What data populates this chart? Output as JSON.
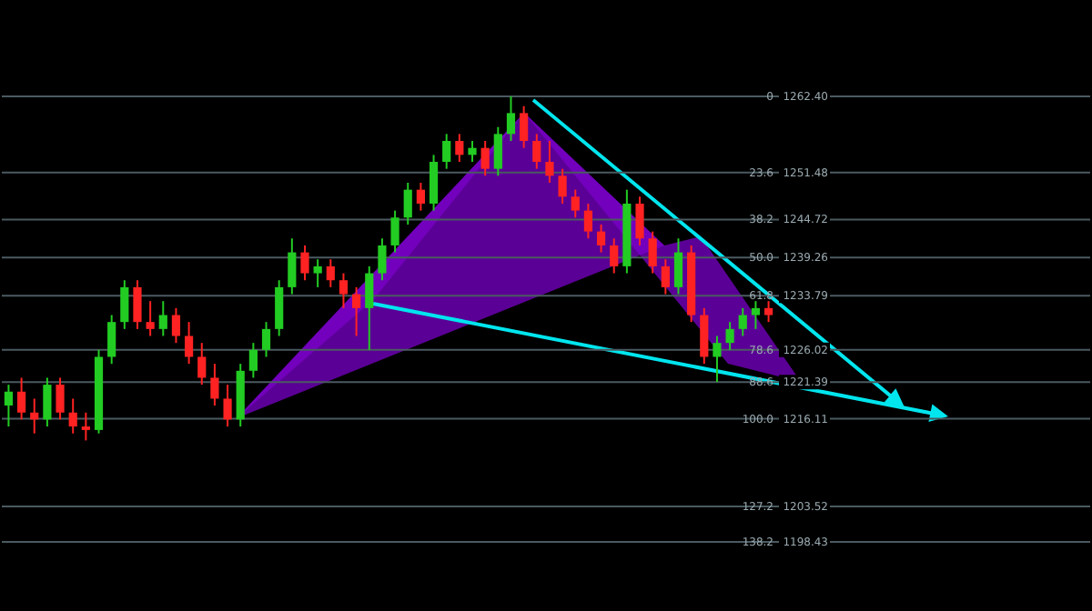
{
  "chart_data": {
    "type": "candlestick",
    "categories": [
      null,
      null,
      null,
      null,
      null,
      null,
      null,
      null,
      null,
      null,
      null,
      null,
      null,
      null,
      null,
      null,
      null,
      null,
      null,
      null,
      null,
      null,
      null,
      null,
      null,
      null,
      null,
      null,
      null,
      null,
      null,
      null,
      null,
      null,
      null,
      null,
      null,
      null,
      null,
      null,
      null,
      null,
      null,
      null,
      null,
      null,
      null,
      null,
      null,
      null,
      null,
      null,
      null,
      null,
      null,
      null,
      null,
      null,
      null,
      null
    ],
    "ohlc": [
      [
        1218,
        1221,
        1215,
        1220
      ],
      [
        1220,
        1222,
        1216,
        1217
      ],
      [
        1217,
        1219,
        1214,
        1216
      ],
      [
        1216,
        1222,
        1215,
        1221
      ],
      [
        1221,
        1222,
        1216,
        1217
      ],
      [
        1217,
        1219,
        1214,
        1215
      ],
      [
        1215,
        1217,
        1213,
        1214.5
      ],
      [
        1214.5,
        1226,
        1214,
        1225
      ],
      [
        1225,
        1231,
        1224,
        1230
      ],
      [
        1230,
        1236,
        1229,
        1235
      ],
      [
        1235,
        1236,
        1229,
        1230
      ],
      [
        1230,
        1233,
        1228,
        1229
      ],
      [
        1229,
        1233,
        1228,
        1231
      ],
      [
        1231,
        1232,
        1227,
        1228
      ],
      [
        1228,
        1230,
        1224,
        1225
      ],
      [
        1225,
        1227,
        1221,
        1222
      ],
      [
        1222,
        1224,
        1218,
        1219
      ],
      [
        1219,
        1221,
        1215,
        1216
      ],
      [
        1216,
        1224,
        1215,
        1223
      ],
      [
        1223,
        1227,
        1222,
        1226
      ],
      [
        1226,
        1230,
        1225,
        1229
      ],
      [
        1229,
        1236,
        1228,
        1235
      ],
      [
        1235,
        1242,
        1234,
        1240
      ],
      [
        1240,
        1241,
        1236,
        1237
      ],
      [
        1237,
        1239,
        1235,
        1238
      ],
      [
        1238,
        1239,
        1235,
        1236
      ],
      [
        1236,
        1237,
        1232,
        1234
      ],
      [
        1234,
        1235,
        1228,
        1232
      ],
      [
        1232,
        1238,
        1226,
        1237
      ],
      [
        1237,
        1242,
        1236,
        1241
      ],
      [
        1241,
        1246,
        1240,
        1245
      ],
      [
        1245,
        1250,
        1244,
        1249
      ],
      [
        1249,
        1250,
        1246,
        1247
      ],
      [
        1247,
        1254,
        1246,
        1253
      ],
      [
        1253,
        1257,
        1252,
        1256
      ],
      [
        1256,
        1257,
        1253,
        1254
      ],
      [
        1254,
        1256,
        1253,
        1255
      ],
      [
        1255,
        1256,
        1251,
        1252
      ],
      [
        1252,
        1258,
        1251,
        1257
      ],
      [
        1257,
        1262.4,
        1256,
        1260
      ],
      [
        1260,
        1261,
        1255,
        1256
      ],
      [
        1256,
        1257,
        1252,
        1253
      ],
      [
        1253,
        1256,
        1250,
        1251
      ],
      [
        1251,
        1252,
        1247,
        1248
      ],
      [
        1248,
        1249,
        1245,
        1246
      ],
      [
        1246,
        1247,
        1242,
        1243
      ],
      [
        1243,
        1244,
        1240,
        1241
      ],
      [
        1241,
        1242,
        1237,
        1238
      ],
      [
        1238,
        1249,
        1237,
        1247
      ],
      [
        1247,
        1248,
        1241,
        1242
      ],
      [
        1242,
        1243,
        1237,
        1238
      ],
      [
        1238,
        1239,
        1234,
        1235
      ],
      [
        1235,
        1242,
        1234,
        1240
      ],
      [
        1240,
        1241,
        1230,
        1231
      ],
      [
        1231,
        1232,
        1224,
        1225
      ],
      [
        1225,
        1228,
        1221.4,
        1227
      ],
      [
        1227,
        1230,
        1226,
        1229
      ],
      [
        1229,
        1232,
        1228,
        1231
      ],
      [
        1231,
        1233,
        1229,
        1232
      ],
      [
        1232,
        1233,
        1230,
        1231
      ]
    ],
    "colors": [
      "#22cc22",
      "#ff2222",
      "#ff2222",
      "#22cc22",
      "#ff2222",
      "#ff2222",
      "#ff2222",
      "#22cc22",
      "#22cc22",
      "#22cc22",
      "#ff2222",
      "#ff2222",
      "#22cc22",
      "#ff2222",
      "#ff2222",
      "#ff2222",
      "#ff2222",
      "#ff2222",
      "#22cc22",
      "#22cc22",
      "#22cc22",
      "#22cc22",
      "#22cc22",
      "#ff2222",
      "#22cc22",
      "#ff2222",
      "#ff2222",
      "#ff2222",
      "#22cc22",
      "#22cc22",
      "#22cc22",
      "#22cc22",
      "#ff2222",
      "#22cc22",
      "#22cc22",
      "#ff2222",
      "#22cc22",
      "#ff2222",
      "#22cc22",
      "#22cc22",
      "#ff2222",
      "#ff2222",
      "#ff2222",
      "#ff2222",
      "#ff2222",
      "#ff2222",
      "#ff2222",
      "#ff2222",
      "#22cc22",
      "#ff2222",
      "#ff2222",
      "#ff2222",
      "#22cc22",
      "#ff2222",
      "#ff2222",
      "#22cc22",
      "#22cc22",
      "#22cc22",
      "#22cc22",
      "#ff2222"
    ],
    "ylim": [
      1198.43,
      1262.4
    ],
    "yticks": [
      {
        "value": 1262.4,
        "label": "1262.40"
      },
      {
        "value": 1251.48,
        "label": "1251.48"
      },
      {
        "value": 1244.72,
        "label": "1244.72"
      },
      {
        "value": 1239.26,
        "label": "1239.26"
      },
      {
        "value": 1233.79,
        "label": "1233.79"
      },
      {
        "value": 1226.02,
        "label": "1226.02"
      },
      {
        "value": 1221.39,
        "label": "1221.39"
      },
      {
        "value": 1216.11,
        "label": "1216.11"
      },
      {
        "value": 1203.52,
        "label": "1203.52"
      },
      {
        "value": 1198.43,
        "label": "1198.43"
      }
    ],
    "annotations": [
      "0",
      "23.6",
      "38.2",
      "50.0",
      "61.8",
      "78.6",
      "88.6",
      "100.0",
      "127.2",
      "138.2"
    ],
    "grid": "y"
  }
}
